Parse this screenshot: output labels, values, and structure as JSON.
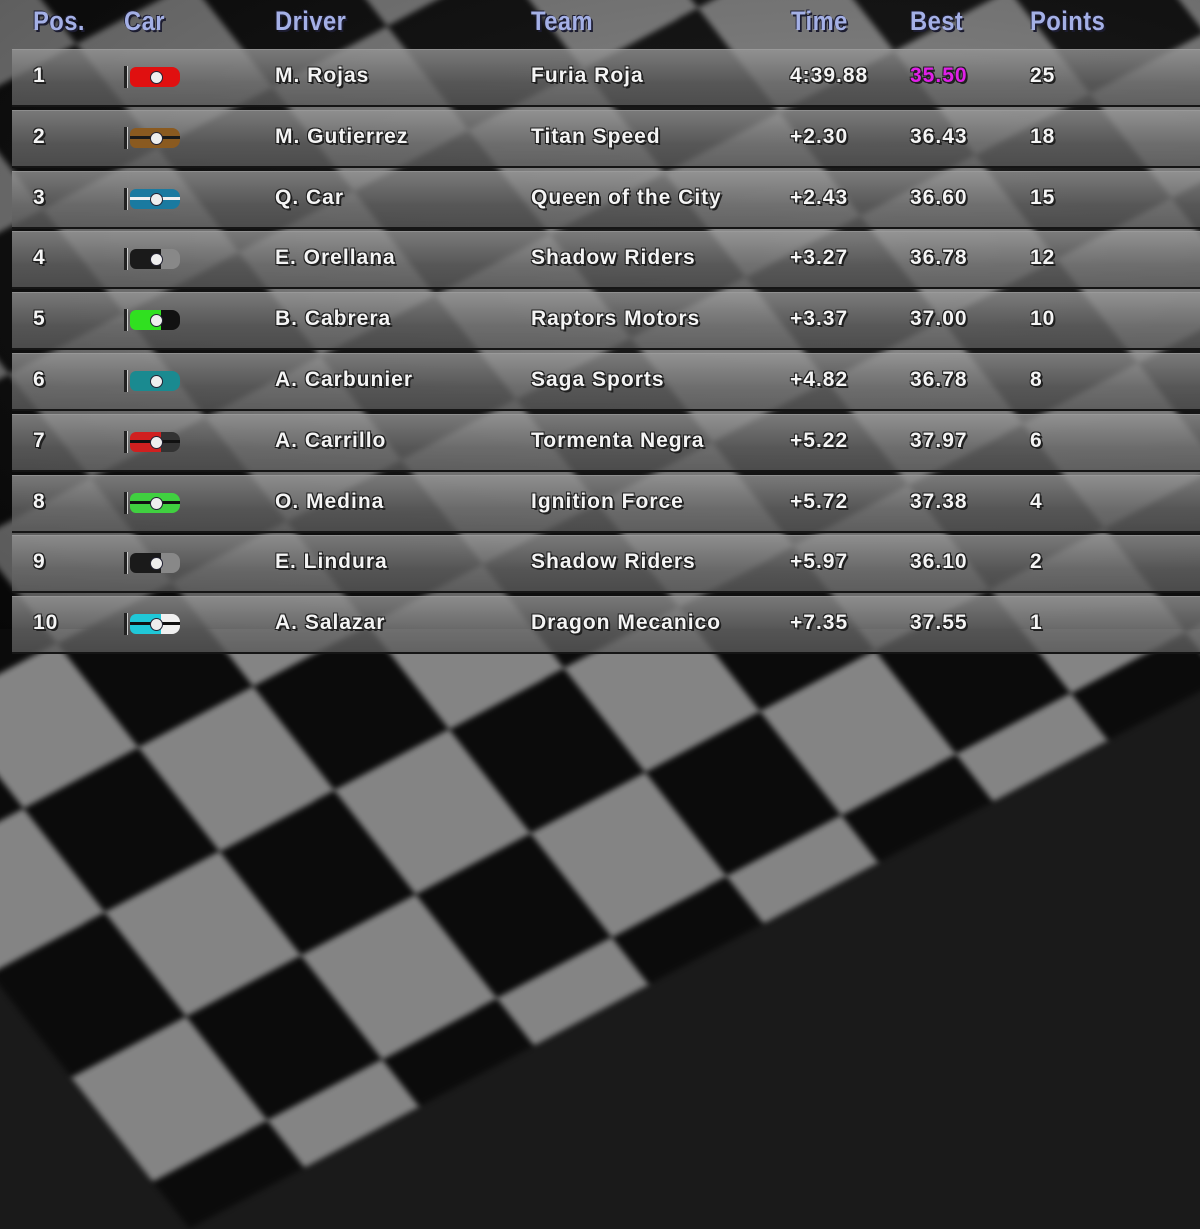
{
  "headers": {
    "pos": "Pos.",
    "car": "Car",
    "driver": "Driver",
    "team": "Team",
    "time": "Time",
    "best": "Best",
    "points": "Points"
  },
  "colors": {
    "header": "#a4b0e6",
    "fastest_lap": "#e020e8",
    "text": "#f4f4f4"
  },
  "rows": [
    {
      "pos": "1",
      "driver": "M. Rojas",
      "team": "Furia Roja",
      "time": "4:39.88",
      "best": "35.50",
      "points": "25",
      "fastest": true,
      "car": {
        "body": "#e01010",
        "stripe": "",
        "rear": ""
      }
    },
    {
      "pos": "2",
      "driver": "M. Gutierrez",
      "team": "Titan Speed",
      "time": "+2.30",
      "best": "36.43",
      "points": "18",
      "car": {
        "body": "#8a5a20",
        "stripe": "#1a1a1a",
        "rear": ""
      }
    },
    {
      "pos": "3",
      "driver": "Q. Car",
      "team": "Queen of the City",
      "time": "+2.43",
      "best": "36.60",
      "points": "15",
      "car": {
        "body": "#1a7aa0",
        "stripe": "#f0f0f0",
        "rear": ""
      }
    },
    {
      "pos": "4",
      "driver": "E. Orellana",
      "team": "Shadow Riders",
      "time": "+3.27",
      "best": "36.78",
      "points": "12",
      "car": {
        "body": "#1a1a1a",
        "stripe": "",
        "rear": "#888888"
      }
    },
    {
      "pos": "5",
      "driver": "B. Cabrera",
      "team": "Raptors Motors",
      "time": "+3.37",
      "best": "37.00",
      "points": "10",
      "car": {
        "body": "#30e020",
        "stripe": "",
        "rear": "#111111"
      }
    },
    {
      "pos": "6",
      "driver": "A. Carbunier",
      "team": "Saga Sports",
      "time": "+4.82",
      "best": "36.78",
      "points": "8",
      "car": {
        "body": "#1a8a90",
        "stripe": "",
        "rear": ""
      }
    },
    {
      "pos": "7",
      "driver": "A. Carrillo",
      "team": "Tormenta Negra",
      "time": "+5.22",
      "best": "37.97",
      "points": "6",
      "car": {
        "body": "#d02020",
        "stripe": "#111111",
        "rear": "#333333"
      }
    },
    {
      "pos": "8",
      "driver": "O. Medina",
      "team": "Ignition Force",
      "time": "+5.72",
      "best": "37.38",
      "points": "4",
      "car": {
        "body": "#40d040",
        "stripe": "#111111",
        "rear": ""
      }
    },
    {
      "pos": "9",
      "driver": "E. Lindura",
      "team": "Shadow Riders",
      "time": "+5.97",
      "best": "36.10",
      "points": "2",
      "car": {
        "body": "#1a1a1a",
        "stripe": "",
        "rear": "#888888"
      }
    },
    {
      "pos": "10",
      "driver": "A. Salazar",
      "team": "Dragon Mecanico",
      "time": "+7.35",
      "best": "37.55",
      "points": "1",
      "car": {
        "body": "#20c8d8",
        "stripe": "#111111",
        "rear": "#f0f0f0"
      }
    }
  ]
}
